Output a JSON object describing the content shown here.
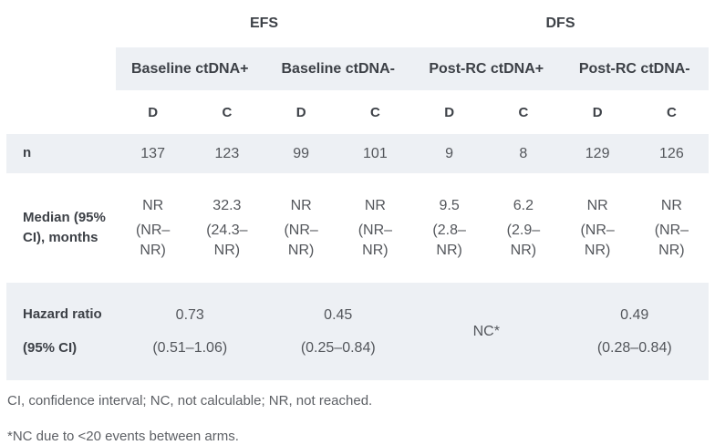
{
  "colors": {
    "band_background": "#edf0f4",
    "header_text": "#3d4147",
    "value_text": "#53565b",
    "footnote_text": "#5d6065"
  },
  "table": {
    "group_headers": {
      "efs": "EFS",
      "dfs": "DFS"
    },
    "subgroups": [
      "Baseline ctDNA+",
      "Baseline ctDNA-",
      "Post-RC ctDNA+",
      "Post-RC ctDNA-"
    ],
    "arms": [
      "D",
      "C",
      "D",
      "C",
      "D",
      "C",
      "D",
      "C"
    ],
    "n_row": {
      "label": "n",
      "values": [
        "137",
        "123",
        "99",
        "101",
        "9",
        "8",
        "129",
        "126"
      ]
    },
    "median_row": {
      "label": "Median (95% CI), months",
      "cells": [
        {
          "value": "NR",
          "ci": "(NR–NR)"
        },
        {
          "value": "32.3",
          "ci": "(24.3–NR)"
        },
        {
          "value": "NR",
          "ci": "(NR–NR)"
        },
        {
          "value": "NR",
          "ci": "(NR–NR)"
        },
        {
          "value": "9.5",
          "ci": "(2.8–NR)"
        },
        {
          "value": "6.2",
          "ci": "(2.9–NR)"
        },
        {
          "value": "NR",
          "ci": "(NR–NR)"
        },
        {
          "value": "NR",
          "ci": "(NR–NR)"
        }
      ]
    },
    "hazard_row": {
      "label_line1": "Hazard ratio",
      "label_line2": "(95% CI)",
      "cells": [
        {
          "value": "0.73",
          "ci": "(0.51–1.06)"
        },
        {
          "value": "0.45",
          "ci": "(0.25–0.84)"
        },
        {
          "value": "NC*"
        },
        {
          "value": "0.49",
          "ci": "(0.28–0.84)"
        }
      ]
    }
  },
  "footnotes": [
    "CI, confidence interval; NC, not calculable; NR, not reached.",
    "*NC due to <20 events between arms."
  ]
}
